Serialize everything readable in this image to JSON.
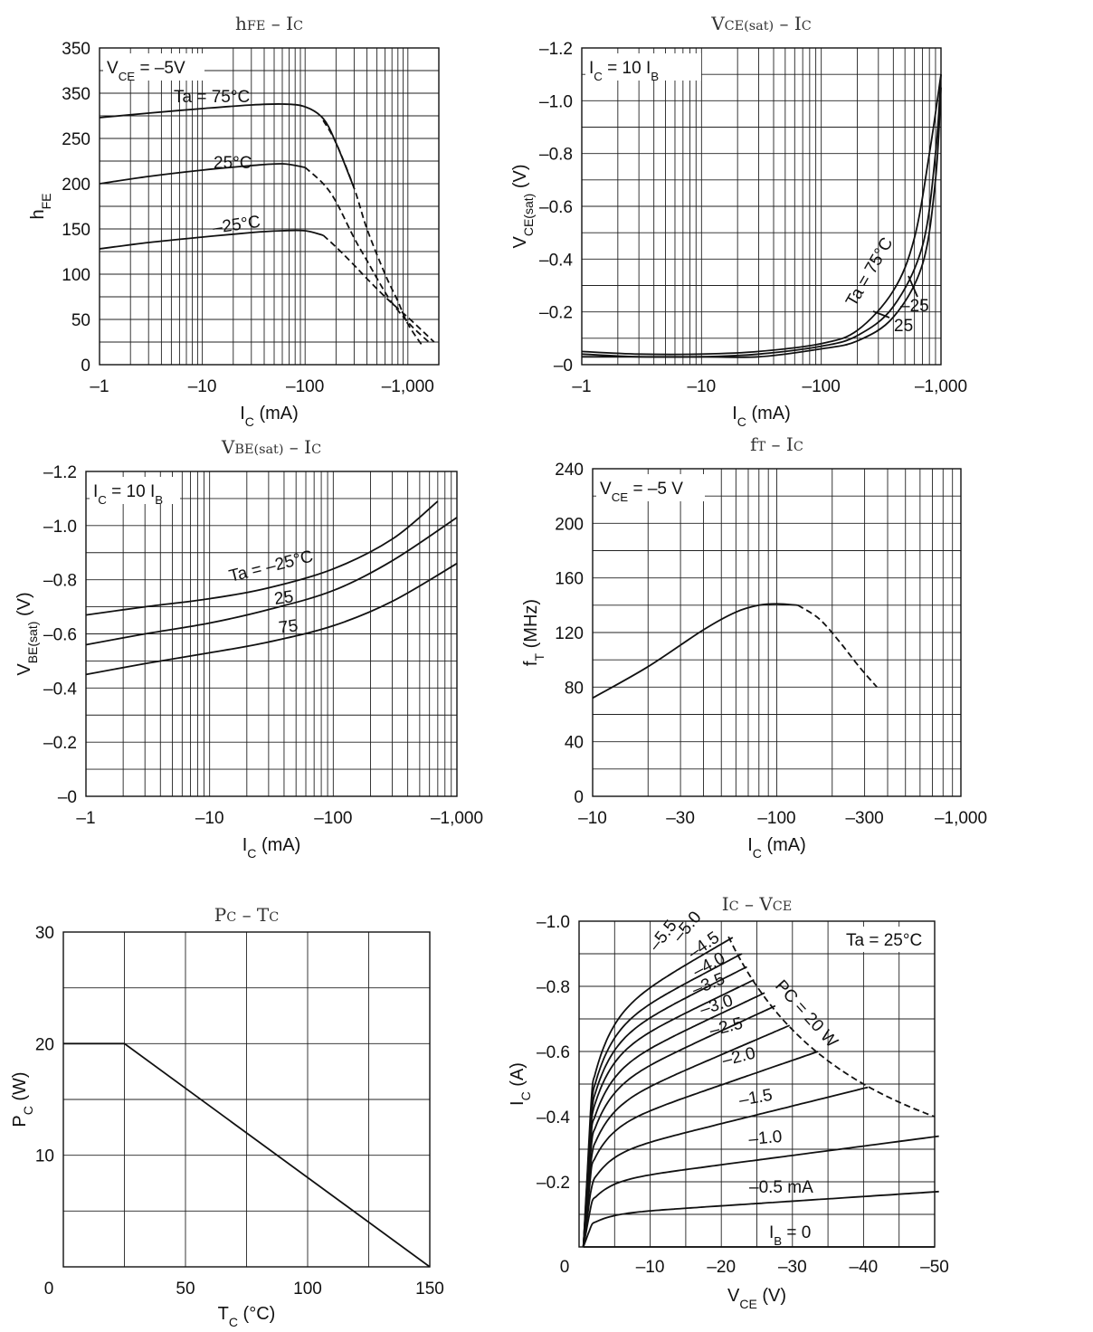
{
  "chart_data": [
    {
      "type": "line",
      "title": "hFE – IC",
      "xlabel": "I_C (mA)",
      "ylabel": "h_FE",
      "x_scale": "log",
      "xlim": [
        -1,
        -2000
      ],
      "ylim": [
        0,
        350
      ],
      "x_ticks": [
        "–1",
        "–10",
        "–100",
        "–1,000"
      ],
      "y_ticks": [
        "0",
        "50",
        "100",
        "150",
        "200",
        "250",
        "350",
        "350"
      ],
      "condition": "V_CE = –5V",
      "series": [
        {
          "name": "Ta = 75°C",
          "x": [
            -1,
            -3,
            -10,
            -30,
            -60,
            -100,
            -150,
            -200,
            -300
          ],
          "y": [
            273,
            278,
            283,
            287,
            288,
            285,
            272,
            245,
            195
          ],
          "dashed_x": [
            -150,
            -200,
            -300,
            -400,
            -600,
            -800,
            -1000,
            -1400
          ],
          "dashed_y": [
            270,
            245,
            195,
            150,
            100,
            70,
            45,
            20
          ]
        },
        {
          "name": "25°C",
          "x": [
            -1,
            -3,
            -10,
            -30,
            -60,
            -100
          ],
          "y": [
            200,
            208,
            215,
            220,
            222,
            218
          ],
          "dashed_x": [
            -100,
            -150,
            -200,
            -300,
            -400,
            -600,
            -800,
            -1100,
            -1600
          ],
          "dashed_y": [
            218,
            200,
            180,
            140,
            115,
            80,
            60,
            42,
            25
          ]
        },
        {
          "name": "–25°C",
          "x": [
            -1,
            -3,
            -10,
            -30,
            -60,
            -100,
            -150
          ],
          "y": [
            128,
            135,
            141,
            146,
            148,
            148,
            143
          ],
          "dashed_x": [
            -150,
            -200,
            -300,
            -400,
            -600,
            -800,
            -1100,
            -1800
          ],
          "dashed_y": [
            143,
            130,
            110,
            95,
            75,
            62,
            48,
            25
          ]
        }
      ]
    },
    {
      "type": "line",
      "title": "VCE(sat) – IC",
      "xlabel": "I_C (mA)",
      "ylabel": "V_CE(sat) (V)",
      "x_scale": "log",
      "xlim": [
        -1,
        -1000
      ],
      "ylim": [
        0,
        -1.2
      ],
      "x_ticks": [
        "–1",
        "–10",
        "–100",
        "–1,000"
      ],
      "y_ticks": [
        "–0",
        "–0.2",
        "–0.4",
        "–0.6",
        "–0.8",
        "–1.0",
        "–1.2"
      ],
      "condition": "I_C = 10 I_B",
      "series": [
        {
          "name": "Ta = 75°C",
          "x": [
            -1,
            -3,
            -10,
            -30,
            -100,
            -200,
            -400,
            -600,
            -800,
            -1000
          ],
          "y": [
            -0.05,
            -0.04,
            -0.04,
            -0.05,
            -0.08,
            -0.13,
            -0.28,
            -0.48,
            -0.8,
            -1.1
          ]
        },
        {
          "name": "25",
          "x": [
            -1,
            -3,
            -10,
            -30,
            -100,
            -200,
            -400,
            -700,
            -900,
            -1000
          ],
          "y": [
            -0.04,
            -0.03,
            -0.03,
            -0.04,
            -0.07,
            -0.11,
            -0.22,
            -0.45,
            -0.8,
            -1.1
          ]
        },
        {
          "name": "–25",
          "x": [
            -1,
            -3,
            -10,
            -30,
            -100,
            -200,
            -400,
            -700,
            -900,
            -1000
          ],
          "y": [
            -0.03,
            -0.03,
            -0.03,
            -0.03,
            -0.06,
            -0.09,
            -0.18,
            -0.38,
            -0.7,
            -1.05
          ]
        }
      ]
    },
    {
      "type": "line",
      "title": "VBE(sat) – IC",
      "xlabel": "I_C (mA)",
      "ylabel": "V_BE(sat) (V)",
      "x_scale": "log",
      "xlim": [
        -1,
        -1000
      ],
      "ylim": [
        0,
        -1.2
      ],
      "x_ticks": [
        "–1",
        "–10",
        "–100",
        "–1,000"
      ],
      "y_ticks": [
        "–0",
        "–0.2",
        "–0.4",
        "–0.6",
        "–0.8",
        "–1.0",
        "–1.2"
      ],
      "condition": "I_C = 10 I_B",
      "series": [
        {
          "name": "Ta = –25°C",
          "x": [
            -1,
            -3,
            -10,
            -30,
            -100,
            -300,
            -700
          ],
          "y": [
            -0.67,
            -0.7,
            -0.73,
            -0.77,
            -0.84,
            -0.95,
            -1.09
          ]
        },
        {
          "name": "25",
          "x": [
            -1,
            -3,
            -10,
            -30,
            -100,
            -300,
            -1000
          ],
          "y": [
            -0.56,
            -0.6,
            -0.64,
            -0.69,
            -0.76,
            -0.87,
            -1.03
          ]
        },
        {
          "name": "75",
          "x": [
            -1,
            -3,
            -10,
            -30,
            -100,
            -300,
            -1000
          ],
          "y": [
            -0.45,
            -0.49,
            -0.53,
            -0.57,
            -0.63,
            -0.72,
            -0.86
          ]
        }
      ]
    },
    {
      "type": "line",
      "title": "fT – IC",
      "xlabel": "I_C (mA)",
      "ylabel": "f_T (MHz)",
      "x_scale": "log",
      "xlim": [
        -10,
        -1000
      ],
      "ylim": [
        0,
        240
      ],
      "x_ticks": [
        "–10",
        "–30",
        "–100",
        "–300",
        "–1,000"
      ],
      "y_ticks": [
        "0",
        "40",
        "80",
        "120",
        "160",
        "200",
        "240"
      ],
      "condition": "V_CE = –5 V",
      "series": [
        {
          "name": "fT",
          "x": [
            -10,
            -20,
            -40,
            -60,
            -80,
            -100,
            -130
          ],
          "y": [
            72,
            95,
            122,
            135,
            140,
            141,
            140
          ],
          "dashed_x": [
            -130,
            -170,
            -220,
            -280,
            -350
          ],
          "dashed_y": [
            140,
            130,
            113,
            95,
            80
          ]
        }
      ]
    },
    {
      "type": "line",
      "title": "PC – TC",
      "xlabel": "T_C (°C)",
      "ylabel": "P_C (W)",
      "xlim": [
        0,
        150
      ],
      "ylim": [
        0,
        30
      ],
      "x_ticks": [
        "0",
        "50",
        "100",
        "150"
      ],
      "y_ticks": [
        "10",
        "20",
        "30"
      ],
      "series": [
        {
          "name": "PC",
          "x": [
            0,
            25,
            150
          ],
          "y": [
            20,
            20,
            0
          ]
        }
      ]
    },
    {
      "type": "line",
      "title": "IC – VCE",
      "xlabel": "V_CE (V)",
      "ylabel": "I_C (A)",
      "xlim": [
        0,
        -50
      ],
      "ylim": [
        0,
        -1.0
      ],
      "x_ticks": [
        "0",
        "–10",
        "–20",
        "–30",
        "–40",
        "–50"
      ],
      "y_ticks": [
        "–0.2",
        "–0.4",
        "–0.6",
        "–0.8",
        "–1.0"
      ],
      "condition": "Ta = 25°C",
      "pc_label": "P_C = 20 W",
      "ib_zero_label": "I_B = 0",
      "curve_labels": [
        "–5.5",
        "–5.0",
        "–4.5",
        "–4.0",
        "–3.5",
        "–3.0",
        "–2.5",
        "–2.0",
        "–1.5",
        "–1.0",
        "–0.5 mA"
      ],
      "series": [
        {
          "name": "–0.5 mA",
          "sat": 0.1,
          "end": 0.17,
          "xmax": 50
        },
        {
          "name": "–1.0",
          "sat": 0.2,
          "end": 0.34,
          "xmax": 50
        },
        {
          "name": "–1.5",
          "sat": 0.28,
          "end": 0.49,
          "xmax": 40
        },
        {
          "name": "–2.0",
          "sat": 0.36,
          "end": 0.6,
          "xmax": 33
        },
        {
          "name": "–2.5",
          "sat": 0.42,
          "end": 0.68,
          "xmax": 29
        },
        {
          "name": "–3.0",
          "sat": 0.48,
          "end": 0.74,
          "xmax": 27
        },
        {
          "name": "–3.5",
          "sat": 0.53,
          "end": 0.78,
          "xmax": 25.5
        },
        {
          "name": "–4.0",
          "sat": 0.58,
          "end": 0.82,
          "xmax": 24
        },
        {
          "name": "–4.5",
          "sat": 0.62,
          "end": 0.86,
          "xmax": 23
        },
        {
          "name": "–5.0",
          "sat": 0.66,
          "end": 0.9,
          "xmax": 22.3
        },
        {
          "name": "–5.5",
          "sat": 0.7,
          "end": 0.95,
          "xmax": 21
        }
      ]
    }
  ]
}
